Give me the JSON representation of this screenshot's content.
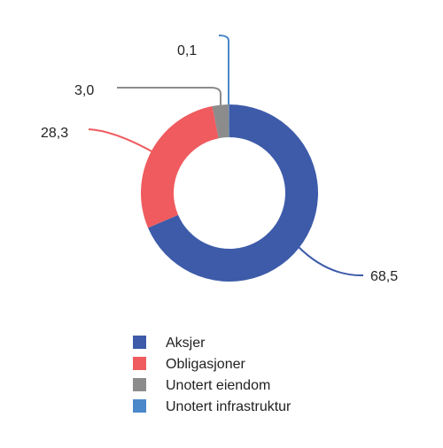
{
  "chart_data": {
    "type": "pie",
    "subtype": "donut",
    "series": [
      {
        "name": "Aksjer",
        "value": 68.5,
        "label": "68,5",
        "color": "#3D5BA9"
      },
      {
        "name": "Obligasjoner",
        "value": 28.3,
        "label": "28,3",
        "color": "#EF5B5F"
      },
      {
        "name": "Unotert eiendom",
        "value": 3.0,
        "label": "3,0",
        "color": "#8C8C8C"
      },
      {
        "name": "Unotert infrastruktur",
        "value": 0.1,
        "label": "0,1",
        "color": "#4A88C9"
      }
    ],
    "legend_position": "bottom"
  }
}
